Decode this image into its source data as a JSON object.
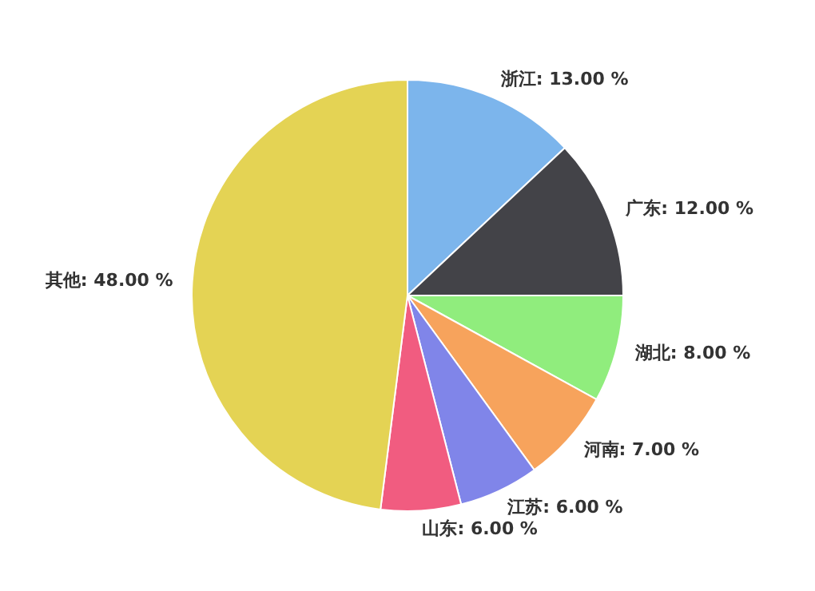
{
  "chart_data": {
    "type": "pie",
    "categories": [
      "浙江",
      "广东",
      "湖北",
      "河南",
      "江苏",
      "山东",
      "其他"
    ],
    "values": [
      13,
      12,
      8,
      7,
      6,
      6,
      48
    ],
    "colors": [
      "#7cb5ec",
      "#434348",
      "#90ed7d",
      "#f7a35c",
      "#8085e9",
      "#f15c80",
      "#e4d354"
    ],
    "value_labels": [
      "13.00 %",
      "12.00 %",
      "8.00 %",
      "7.00 %",
      "6.00 %",
      "6.00 %",
      "48.00 %"
    ]
  }
}
